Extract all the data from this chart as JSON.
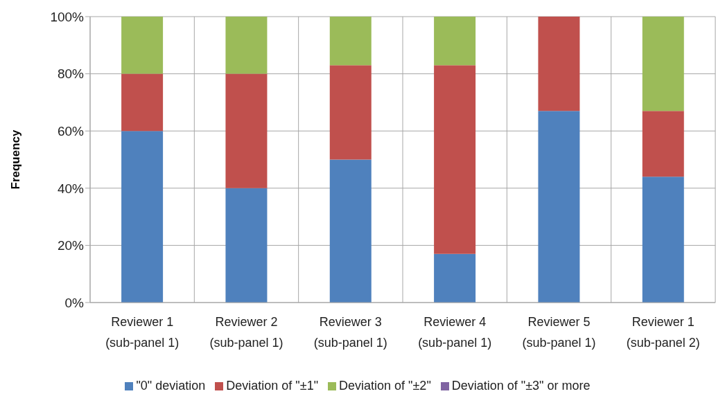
{
  "chart_data": {
    "type": "bar",
    "stacked": true,
    "ylabel": "Frequency",
    "categories": [
      "Reviewer 1\n(sub-panel 1)",
      "Reviewer 2\n(sub-panel 1)",
      "Reviewer 3\n(sub-panel 1)",
      "Reviewer 4\n(sub-panel 1)",
      "Reviewer 5\n(sub-panel 1)",
      "Reviewer 1\n(sub-panel 2)"
    ],
    "series": [
      {
        "name": "\"0\" deviation",
        "color": "#4f81bd",
        "values": [
          60,
          40,
          50,
          17,
          67,
          44
        ]
      },
      {
        "name": "Deviation of \"±1\"",
        "color": "#c0504d",
        "values": [
          20,
          40,
          33,
          66,
          33,
          23
        ]
      },
      {
        "name": "Deviation of \"±2\"",
        "color": "#9bbb59",
        "values": [
          20,
          20,
          17,
          17,
          0,
          33
        ]
      },
      {
        "name": "Deviation of \"±3\" or more",
        "color": "#8064a2",
        "values": [
          0,
          0,
          0,
          0,
          0,
          0
        ]
      }
    ],
    "ylim": [
      0,
      100
    ],
    "yticks": [
      {
        "value": 0,
        "label": "0%"
      },
      {
        "value": 20,
        "label": "20%"
      },
      {
        "value": 40,
        "label": "40%"
      },
      {
        "value": 60,
        "label": "60%"
      },
      {
        "value": 80,
        "label": "80%"
      },
      {
        "value": 100,
        "label": "100%"
      }
    ],
    "grid": true,
    "legend": "bottom"
  }
}
